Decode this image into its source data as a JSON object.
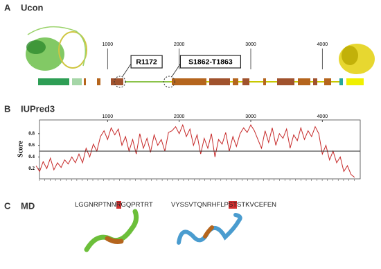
{
  "panel_a": {
    "label": "A",
    "title": "Ucon",
    "xlim": [
      0,
      4500
    ],
    "ticks": [
      1000,
      2000,
      3000,
      4000
    ],
    "sites": [
      {
        "label": "R1172",
        "position": 1172
      },
      {
        "label": "S1862-T1863",
        "position": 1862
      }
    ]
  },
  "chart_data": {
    "type": "line",
    "label": "B",
    "title": "IUPred3",
    "ylabel": "Score",
    "color": "#c62828",
    "x": [
      0,
      50,
      100,
      150,
      200,
      250,
      300,
      350,
      400,
      450,
      500,
      550,
      600,
      650,
      700,
      750,
      800,
      850,
      900,
      950,
      1000,
      1050,
      1100,
      1150,
      1200,
      1250,
      1300,
      1350,
      1400,
      1450,
      1500,
      1550,
      1600,
      1650,
      1700,
      1750,
      1800,
      1850,
      1900,
      1950,
      2000,
      2050,
      2100,
      2150,
      2200,
      2250,
      2300,
      2350,
      2400,
      2450,
      2500,
      2550,
      2600,
      2650,
      2700,
      2750,
      2800,
      2850,
      2900,
      2950,
      3000,
      3050,
      3100,
      3150,
      3200,
      3250,
      3300,
      3350,
      3400,
      3450,
      3500,
      3550,
      3600,
      3650,
      3700,
      3750,
      3800,
      3850,
      3900,
      3950,
      4000,
      4050,
      4100,
      4150,
      4200,
      4250,
      4300,
      4350,
      4400,
      4450
    ],
    "values": [
      0.25,
      0.15,
      0.32,
      0.2,
      0.38,
      0.18,
      0.3,
      0.22,
      0.35,
      0.28,
      0.4,
      0.3,
      0.45,
      0.3,
      0.55,
      0.4,
      0.62,
      0.5,
      0.75,
      0.85,
      0.7,
      0.9,
      0.78,
      0.88,
      0.6,
      0.75,
      0.5,
      0.7,
      0.45,
      0.8,
      0.55,
      0.72,
      0.48,
      0.78,
      0.6,
      0.7,
      0.5,
      0.82,
      0.85,
      0.92,
      0.8,
      0.95,
      0.75,
      0.88,
      0.6,
      0.78,
      0.45,
      0.72,
      0.55,
      0.8,
      0.4,
      0.7,
      0.62,
      0.82,
      0.5,
      0.75,
      0.58,
      0.8,
      0.9,
      0.82,
      0.95,
      0.85,
      0.7,
      0.55,
      0.85,
      0.65,
      0.9,
      0.6,
      0.8,
      0.72,
      0.88,
      0.55,
      0.78,
      0.68,
      0.9,
      0.7,
      0.85,
      0.75,
      0.92,
      0.8,
      0.45,
      0.6,
      0.35,
      0.5,
      0.3,
      0.4,
      0.15,
      0.25,
      0.1,
      0.05
    ],
    "threshold": 0.5,
    "xlim": [
      0,
      4500
    ],
    "xticks": [
      1000,
      2000,
      3000,
      4000
    ],
    "ylim": [
      0,
      1
    ],
    "yticks": [
      0.2,
      0.4,
      0.6,
      0.8
    ]
  },
  "panel_c": {
    "label": "C",
    "title": "MD",
    "sequences": [
      {
        "before": "LGGNRPTNN",
        "site": "R",
        "after": "GQPRTRT"
      },
      {
        "before": "VYSSVTQNRHFLP",
        "site": "ST",
        "after": "STKVCEFEN"
      }
    ]
  }
}
